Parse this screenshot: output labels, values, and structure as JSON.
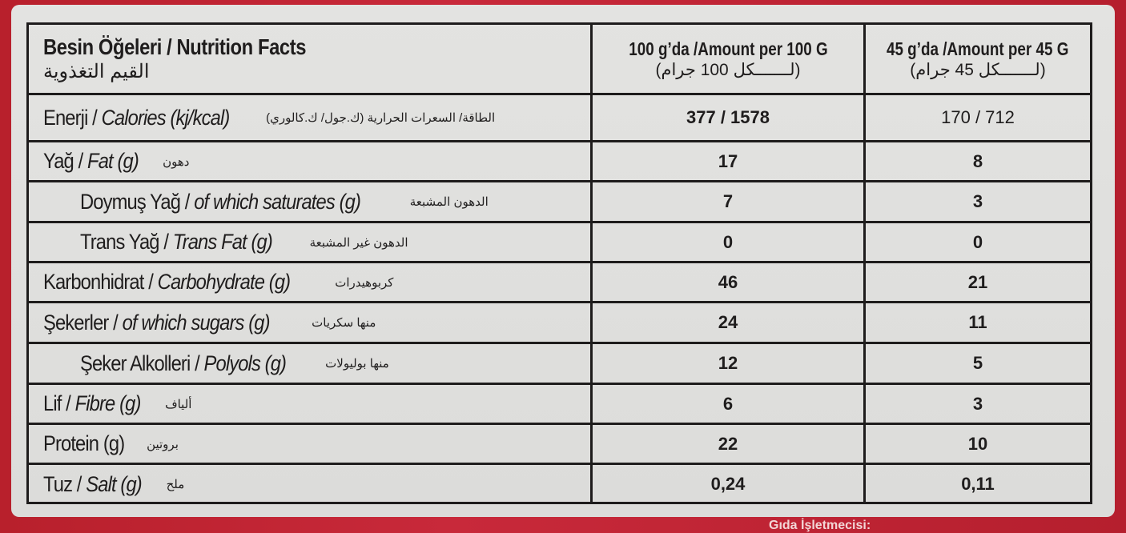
{
  "header": {
    "title": "Besin Öğeleri / Nutrition Facts",
    "title_ar": "القيم التغذوية",
    "col_100": "100 g’da /Amount per 100 G",
    "col_100_ar": "(لـــــــكل 100 جرام)",
    "col_45": "45 g’da /Amount per 45 G",
    "col_45_ar": "(لـــــــكل 45 جرام)"
  },
  "rows": [
    {
      "tr": "Enerji /",
      "en": "Calories (kj/kcal)",
      "ar": "الطاقة/ السعرات الحرارية (ك.جول/ ك.كالوري)",
      "v100": "377 / 1578",
      "v45": "170 / 712"
    },
    {
      "tr": "Yağ /",
      "en": "Fat (g)",
      "ar": "دهون",
      "v100": "17",
      "v45": "8"
    },
    {
      "tr": "Doymuş Yağ /",
      "en": "of which saturates (g)",
      "ar": "الدهون المشبعة",
      "v100": "7",
      "v45": "3"
    },
    {
      "tr": "Trans Yağ /",
      "en": "Trans Fat  (g)",
      "ar": "الدهون غير المشبعة",
      "v100": "0",
      "v45": "0"
    },
    {
      "tr": "Karbonhidrat /",
      "en": "Carbohydrate (g)",
      "ar": "كربوهيدرات",
      "v100": "46",
      "v45": "21"
    },
    {
      "tr": "Şekerler /",
      "en": "of which sugars (g)",
      "ar": "منها سكريات",
      "v100": "24",
      "v45": "11"
    },
    {
      "tr": "Şeker Alkolleri /",
      "en": "Polyols (g)",
      "ar": "منها بوليولات",
      "v100": "12",
      "v45": "5"
    },
    {
      "tr": "Lif /",
      "en": "Fibre (g)",
      "ar": "ألياف",
      "v100": "6",
      "v45": "3"
    },
    {
      "tr": "Protein (g)",
      "en": "",
      "ar": "بروتين",
      "v100": "22",
      "v45": "10"
    },
    {
      "tr": "Tuz /",
      "en": "Salt (g)",
      "ar": "ملح",
      "v100": "0,24",
      "v45": "0,11"
    }
  ],
  "footer_text": "Gıda İşletmecisi:"
}
